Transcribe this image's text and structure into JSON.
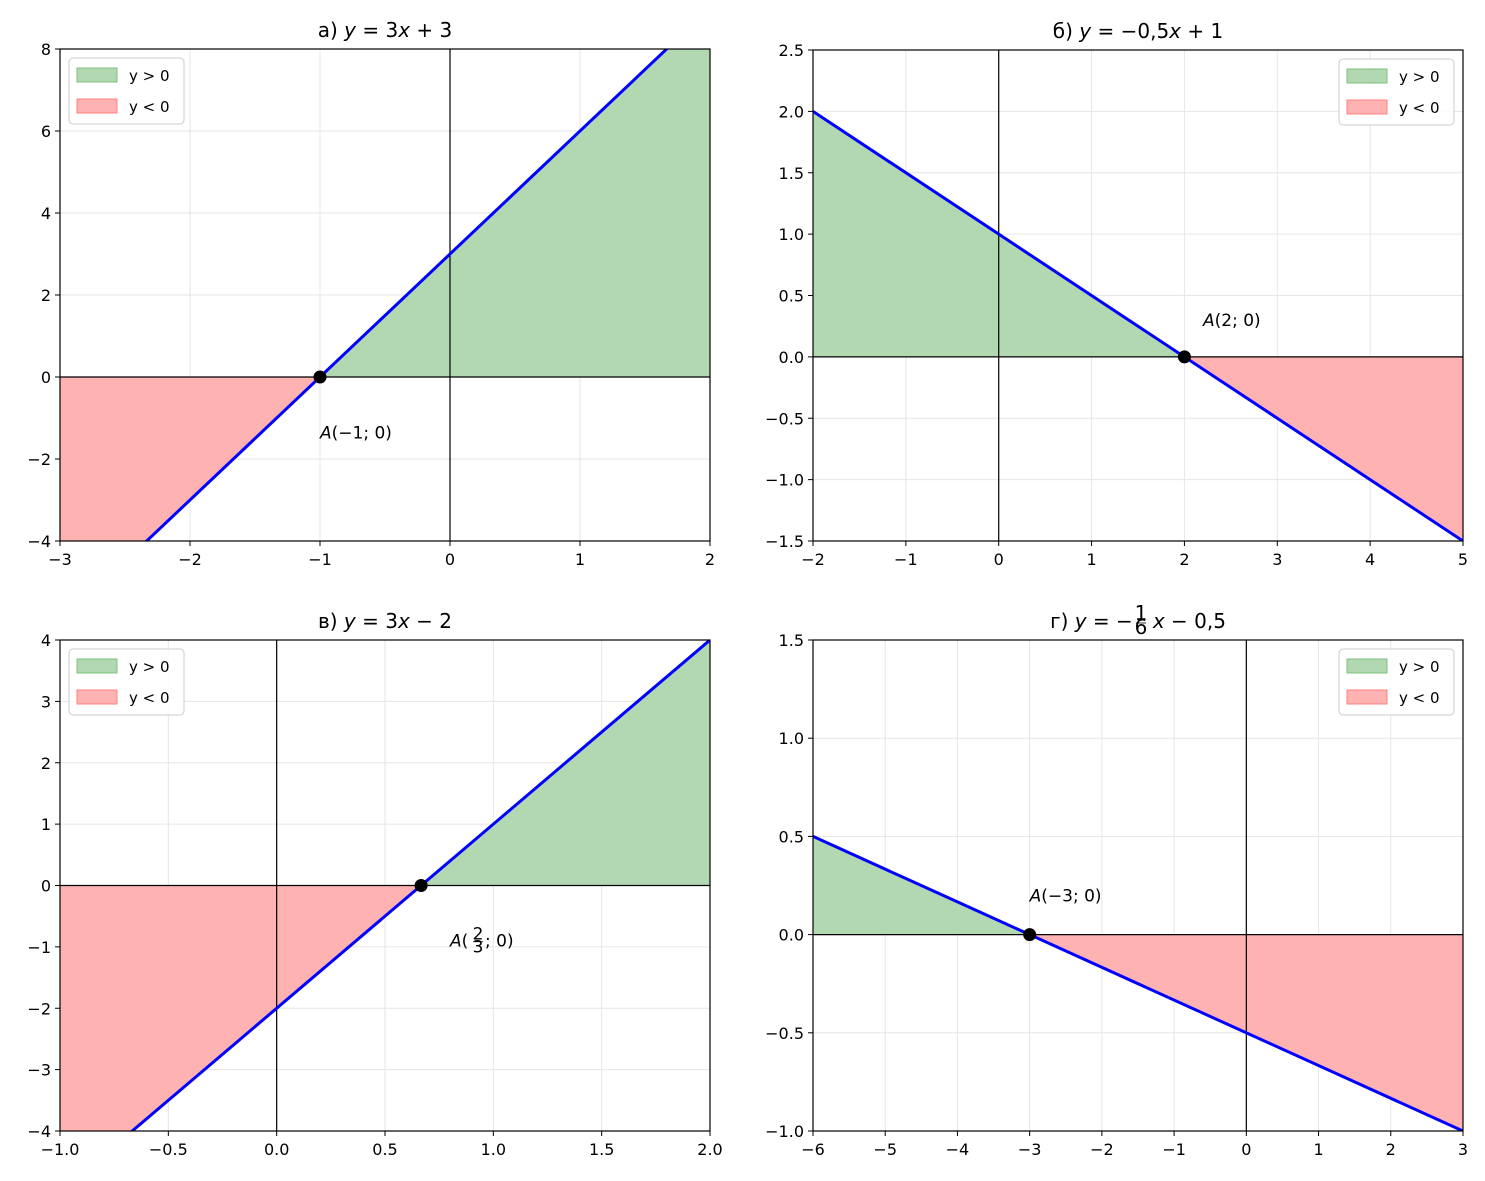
{
  "chart_data": [
    {
      "type": "line",
      "title_prefix": "а)",
      "title_math": "y = 3x + 3",
      "slope": 3,
      "intercept": 3,
      "xlim": [
        -3,
        2
      ],
      "ylim": [
        -4,
        8
      ],
      "xticks": [
        -3,
        -2,
        -1,
        0,
        1,
        2
      ],
      "yticks": [
        -4,
        -2,
        0,
        2,
        4,
        6,
        8
      ],
      "xtick_labels": [
        "−3",
        "−2",
        "−1",
        "0",
        "1",
        "2"
      ],
      "ytick_labels": [
        "−4",
        "−2",
        "0",
        "2",
        "4",
        "6",
        "8"
      ],
      "root": {
        "x": -1,
        "y": 0
      },
      "annotation": "A(−1; 0)",
      "annotation_at": {
        "x": -1,
        "y": -1.35
      },
      "legend_position": "upper left",
      "grid": true
    },
    {
      "type": "line",
      "title_prefix": "б)",
      "title_math": "y = −0,5x + 1",
      "slope": -0.5,
      "intercept": 1,
      "xlim": [
        -2,
        5
      ],
      "ylim": [
        -1.5,
        2.5
      ],
      "xticks": [
        -2,
        -1,
        0,
        1,
        2,
        3,
        4,
        5
      ],
      "yticks": [
        -1.5,
        -1.0,
        -0.5,
        0.0,
        0.5,
        1.0,
        1.5,
        2.0,
        2.5
      ],
      "xtick_labels": [
        "−2",
        "−1",
        "0",
        "1",
        "2",
        "3",
        "4",
        "5"
      ],
      "ytick_labels": [
        "−1.5",
        "−1.0",
        "−0.5",
        "0.0",
        "0.5",
        "1.0",
        "1.5",
        "2.0",
        "2.5"
      ],
      "root": {
        "x": 2,
        "y": 0
      },
      "annotation": "A(2; 0)",
      "annotation_at": {
        "x": 2.2,
        "y": 0.3
      },
      "legend_position": "upper right",
      "grid": true
    },
    {
      "type": "line",
      "title_prefix": "в)",
      "title_math": "y = 3x − 2",
      "slope": 3,
      "intercept": -2,
      "xlim": [
        -1,
        2
      ],
      "ylim": [
        -4,
        4
      ],
      "xticks": [
        -1.0,
        -0.5,
        0.0,
        0.5,
        1.0,
        1.5,
        2.0
      ],
      "yticks": [
        -4,
        -3,
        -2,
        -1,
        0,
        1,
        2,
        3,
        4
      ],
      "xtick_labels": [
        "−1.0",
        "−0.5",
        "0.0",
        "0.5",
        "1.0",
        "1.5",
        "2.0"
      ],
      "ytick_labels": [
        "−4",
        "−3",
        "−2",
        "−1",
        "0",
        "1",
        "2",
        "3",
        "4"
      ],
      "root": {
        "x": 0.6667,
        "y": 0
      },
      "annotation": "A(2/3; 0)",
      "annotation_at": {
        "x": 0.8,
        "y": -0.9
      },
      "legend_position": "upper left",
      "grid": true
    },
    {
      "type": "line",
      "title_prefix": "г)",
      "title_math": "y = −(1/6)x − 0,5",
      "slope": -0.16667,
      "intercept": -0.5,
      "xlim": [
        -6,
        3
      ],
      "ylim": [
        -1,
        1.5
      ],
      "xticks": [
        -6,
        -5,
        -4,
        -3,
        -2,
        -1,
        0,
        1,
        2,
        3
      ],
      "yticks": [
        -1.0,
        -0.5,
        0.0,
        0.5,
        1.0,
        1.5
      ],
      "xtick_labels": [
        "−6",
        "−5",
        "−4",
        "−3",
        "−2",
        "−1",
        "0",
        "1",
        "2",
        "3"
      ],
      "ytick_labels": [
        "−1.0",
        "−0.5",
        "0.0",
        "0.5",
        "1.0",
        "1.5"
      ],
      "root": {
        "x": -3,
        "y": 0
      },
      "annotation": "A(−3; 0)",
      "annotation_at": {
        "x": -3,
        "y": 0.2
      },
      "legend_position": "upper right",
      "grid": true
    }
  ],
  "legend": {
    "positive_label": "y > 0",
    "negative_label": "y < 0"
  },
  "colors": {
    "line": "#0000ff",
    "positive_fill": "#b2d8b2",
    "positive_edge": "#7fbf7f",
    "negative_fill": "#ffb2b2",
    "negative_edge": "#ff8080",
    "point": "#000000",
    "grid": "#e6e6e6"
  }
}
